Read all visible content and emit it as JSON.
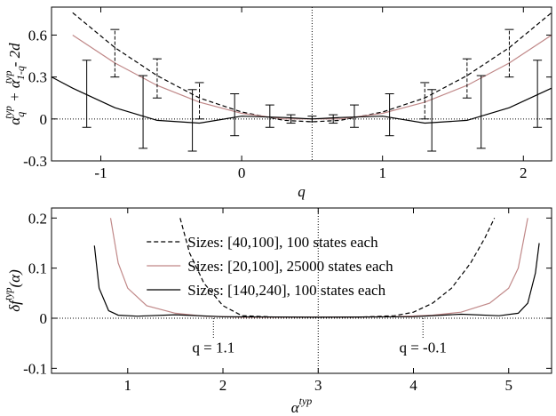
{
  "chart_data": [
    {
      "type": "line",
      "xlabel": "q",
      "ylabel": [
        "α",
        "q",
        "typ",
        " + α",
        "1-q",
        "typ",
        " - 2d"
      ],
      "xlim": [
        -1.35,
        2.2
      ],
      "ylim": [
        -0.3,
        0.8
      ],
      "xticks": [
        -1,
        0,
        1,
        2
      ],
      "yticks": [
        -0.3,
        0,
        0.3,
        0.6
      ],
      "refline_x": 0.5,
      "refline_y": 0,
      "series": [
        {
          "color": "#000000",
          "dash": true,
          "x": [
            -1.2,
            -0.9,
            -0.6,
            -0.3,
            0,
            0.3,
            0.5,
            0.7,
            1,
            1.3,
            1.6,
            1.9,
            2.2
          ],
          "values": [
            0.76,
            0.51,
            0.31,
            0.15,
            0.05,
            -0.01,
            -0.02,
            -0.01,
            0.05,
            0.15,
            0.31,
            0.51,
            0.76
          ]
        },
        {
          "color": "#c08888",
          "dash": false,
          "x": [
            -1.2,
            -0.9,
            -0.6,
            -0.3,
            0,
            0.3,
            0.5,
            0.7,
            1,
            1.3,
            1.6,
            1.9,
            2.2
          ],
          "values": [
            0.6,
            0.4,
            0.24,
            0.12,
            0.04,
            0.0,
            0.0,
            0.0,
            0.04,
            0.12,
            0.24,
            0.4,
            0.6
          ]
        },
        {
          "color": "#000000",
          "dash": false,
          "x": [
            -1.35,
            -1.2,
            -0.9,
            -0.6,
            -0.3,
            0,
            0.3,
            0.5,
            0.7,
            1,
            1.3,
            1.6,
            1.9,
            2.2
          ],
          "values": [
            0.3,
            0.22,
            0.08,
            -0.01,
            -0.03,
            0.02,
            0.01,
            0.0,
            0.01,
            0.02,
            -0.03,
            -0.01,
            0.08,
            0.22
          ]
        }
      ],
      "errorbars": [
        {
          "color": "#000000",
          "dash": false,
          "x": [
            -1.1,
            -0.7,
            -0.35,
            -0.05,
            0.2,
            0.35,
            0.5,
            0.65,
            0.8,
            1.05,
            1.35,
            1.7,
            2.1
          ],
          "values": [
            0.18,
            0.05,
            -0.01,
            0.03,
            0.02,
            0.0,
            0.0,
            0.0,
            0.02,
            0.03,
            -0.01,
            0.05,
            0.18
          ],
          "errors": [
            0.24,
            0.26,
            0.22,
            0.15,
            0.08,
            0.03,
            0.02,
            0.03,
            0.08,
            0.15,
            0.22,
            0.26,
            0.24
          ]
        },
        {
          "color": "#000000",
          "dash": true,
          "x": [
            -0.9,
            -0.6,
            -0.3,
            1.3,
            1.6,
            1.9
          ],
          "values": [
            0.47,
            0.29,
            0.13,
            0.13,
            0.29,
            0.47
          ],
          "errors": [
            0.17,
            0.14,
            0.13,
            0.13,
            0.14,
            0.17
          ]
        }
      ]
    },
    {
      "type": "line",
      "xlabel": [
        "α",
        "typ"
      ],
      "ylabel": [
        "δf",
        "typ",
        "(α)"
      ],
      "xlim": [
        0.2,
        5.45
      ],
      "ylim": [
        -0.11,
        0.22
      ],
      "xticks": [
        1,
        2,
        3,
        4,
        5
      ],
      "yticks": [
        -0.1,
        0,
        0.1,
        0.2
      ],
      "refline_x": 3,
      "refline_y": 0,
      "series": [
        {
          "name": "Sizes: [40,100], 100 states each",
          "color": "#000000",
          "dash": true,
          "x": [
            1.55,
            1.65,
            1.8,
            2.0,
            2.2,
            2.6,
            3,
            3.4,
            3.8,
            4.0,
            4.2,
            4.4,
            4.6,
            4.75,
            4.85
          ],
          "values": [
            0.2,
            0.13,
            0.07,
            0.025,
            0.005,
            0.002,
            0.002,
            0.002,
            0.005,
            0.012,
            0.03,
            0.06,
            0.11,
            0.16,
            0.2
          ]
        },
        {
          "name": "Sizes: [20,100], 25000 states each",
          "color": "#c08888",
          "dash": false,
          "x": [
            0.82,
            0.9,
            1.0,
            1.2,
            1.5,
            1.8,
            2.2,
            3,
            3.8,
            4.2,
            4.5,
            4.8,
            5.0,
            5.1,
            5.2
          ],
          "values": [
            0.2,
            0.11,
            0.06,
            0.025,
            0.01,
            0.004,
            0.002,
            0.002,
            0.003,
            0.006,
            0.012,
            0.03,
            0.06,
            0.1,
            0.2
          ]
        },
        {
          "name": "Sizes: [140,240], 100 states each",
          "color": "#000000",
          "dash": false,
          "x": [
            0.65,
            0.7,
            0.8,
            0.9,
            1.1,
            1.5,
            2,
            3,
            4,
            4.5,
            4.9,
            5.1,
            5.2,
            5.28,
            5.32
          ],
          "values": [
            0.145,
            0.06,
            0.015,
            0.006,
            0.004,
            0.007,
            0.003,
            0.002,
            0.003,
            0.008,
            0.005,
            0.01,
            0.03,
            0.09,
            0.15
          ]
        }
      ],
      "annotations": [
        {
          "text": "q = 1.1",
          "x": 1.9,
          "y": -0.04
        },
        {
          "text": "q = -0.1",
          "x": 4.1,
          "y": -0.04
        }
      ]
    }
  ]
}
